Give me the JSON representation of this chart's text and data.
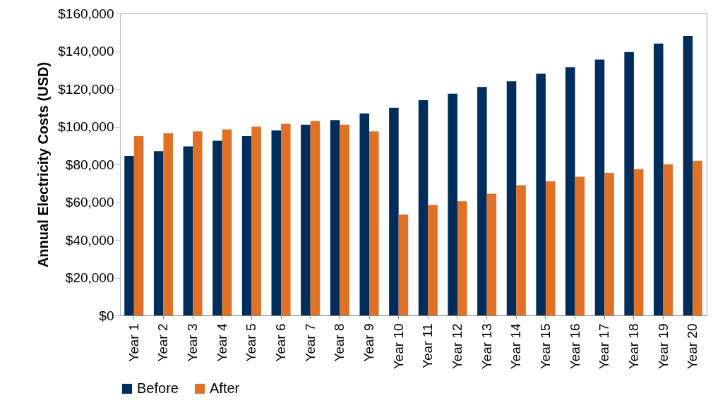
{
  "chart_data": {
    "type": "bar",
    "ylabel": "Annual Electricity Costs (USD)",
    "categories": [
      "Year 1",
      "Year 2",
      "Year 3",
      "Year 4",
      "Year 5",
      "Year 6",
      "Year 7",
      "Year 8",
      "Year 9",
      "Year 10",
      "Year 11",
      "Year 12",
      "Year 13",
      "Year 14",
      "Year 15",
      "Year 16",
      "Year 17",
      "Year 18",
      "Year 19",
      "Year 20"
    ],
    "series": [
      {
        "name": "Before",
        "color": "#002d5b",
        "values": [
          84500,
          87000,
          89500,
          92500,
          95000,
          98000,
          101000,
          103500,
          107000,
          110000,
          114000,
          117500,
          121000,
          124000,
          128000,
          131500,
          135500,
          139500,
          144000,
          148000
        ]
      },
      {
        "name": "After",
        "color": "#e07126",
        "values": [
          95000,
          96500,
          97500,
          98500,
          100000,
          101500,
          103000,
          101000,
          97500,
          53500,
          58500,
          60500,
          64500,
          69000,
          71000,
          73500,
          75500,
          77500,
          80000,
          82000
        ]
      }
    ],
    "ylim": [
      0,
      160000
    ],
    "yticks": [
      {
        "value": 0,
        "label": "$0"
      },
      {
        "value": 20000,
        "label": "$20,000"
      },
      {
        "value": 40000,
        "label": "$40,000"
      },
      {
        "value": 60000,
        "label": "$60,000"
      },
      {
        "value": 80000,
        "label": "$80,000"
      },
      {
        "value": 100000,
        "label": "$100,000"
      },
      {
        "value": 120000,
        "label": "$120,000"
      },
      {
        "value": 140000,
        "label": "$140,000"
      },
      {
        "value": 160000,
        "label": "$160,000"
      }
    ],
    "grid": false,
    "legend": "bottom"
  }
}
